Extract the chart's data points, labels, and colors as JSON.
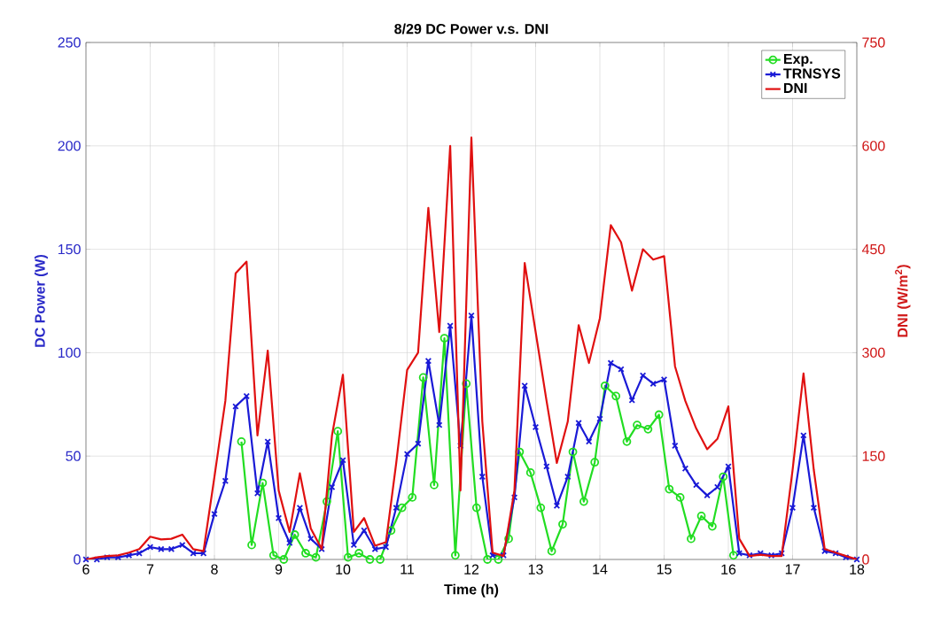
{
  "chart_data": {
    "type": "line",
    "title": "8/29 DC Power v.s. DNI",
    "xlabel": "Time (h)",
    "ylabel": "DC Power (W)",
    "y2label": "DNI (W/m$^{2}$)",
    "xlim": [
      6,
      18
    ],
    "xticks": [
      6,
      7,
      8,
      9,
      10,
      11,
      12,
      13,
      14,
      15,
      16,
      17,
      18
    ],
    "ylim": [
      0,
      250
    ],
    "yticks": [
      0,
      50,
      100,
      150,
      200,
      250
    ],
    "y2lim": [
      0,
      750
    ],
    "y2ticks": [
      0,
      150,
      300,
      450,
      600,
      750
    ],
    "grid": true,
    "legend": "top right",
    "line_style": "solid",
    "series": [
      {
        "name": "Exp.",
        "color": "#22dd22",
        "marker": "circle",
        "x": [
          8.42,
          8.58,
          8.75,
          8.92,
          9.08,
          9.25,
          9.42,
          9.58,
          9.75,
          9.92,
          10.08,
          10.25,
          10.42,
          10.58,
          10.75,
          10.92,
          11.08,
          11.25,
          11.42,
          11.58,
          11.75,
          11.92,
          12.08,
          12.25,
          12.42,
          12.58,
          12.75,
          12.92,
          13.08,
          13.25,
          13.42,
          13.58,
          13.75,
          13.92,
          14.08,
          14.25,
          14.42,
          14.58,
          14.75,
          14.92,
          15.08,
          15.25,
          15.42,
          15.58,
          15.75,
          15.92,
          16.08
        ],
        "values": [
          57,
          7,
          37,
          2,
          0,
          12,
          3,
          1,
          28,
          62,
          1,
          3,
          0,
          0,
          14,
          25,
          30,
          88,
          36,
          107,
          2,
          85,
          25,
          0,
          0,
          10,
          52,
          42,
          25,
          4,
          17,
          52,
          28,
          47,
          84,
          79,
          57,
          65,
          63,
          70,
          34,
          30,
          10,
          21,
          16,
          40,
          2
        ]
      },
      {
        "name": "TRNSYS",
        "color": "#1a1ad6",
        "marker": "cross",
        "x": [
          6.0,
          6.17,
          6.33,
          6.5,
          6.67,
          6.83,
          7.0,
          7.17,
          7.33,
          7.5,
          7.67,
          7.83,
          8.0,
          8.17,
          8.33,
          8.5,
          8.67,
          8.83,
          9.0,
          9.17,
          9.33,
          9.5,
          9.67,
          9.83,
          10.0,
          10.17,
          10.33,
          10.5,
          10.67,
          10.83,
          11.0,
          11.17,
          11.33,
          11.5,
          11.67,
          11.83,
          12.0,
          12.17,
          12.33,
          12.5,
          12.67,
          12.83,
          13.0,
          13.17,
          13.33,
          13.5,
          13.67,
          13.83,
          14.0,
          14.17,
          14.33,
          14.5,
          14.67,
          14.83,
          15.0,
          15.17,
          15.33,
          15.5,
          15.67,
          15.83,
          16.0,
          16.17,
          16.33,
          16.5,
          16.67,
          16.83,
          17.0,
          17.17,
          17.33,
          17.5,
          17.67,
          17.83,
          18.0
        ],
        "values": [
          0,
          0,
          1,
          1,
          2,
          3,
          6,
          5,
          5,
          7,
          3,
          3,
          22,
          38,
          74,
          79,
          32,
          57,
          20,
          8,
          25,
          10,
          5,
          35,
          48,
          7,
          14,
          5,
          6,
          25,
          51,
          56,
          96,
          65,
          113,
          55,
          118,
          40,
          2,
          2,
          30,
          84,
          64,
          45,
          26,
          40,
          66,
          57,
          68,
          95,
          92,
          77,
          89,
          85,
          87,
          55,
          44,
          36,
          31,
          35,
          45,
          3,
          2,
          3,
          2,
          3,
          25,
          60,
          25,
          4,
          3,
          1,
          0
        ]
      },
      {
        "name": "DNI",
        "color": "#e01010",
        "marker": "none",
        "axis": "y2",
        "x": [
          6.0,
          6.17,
          6.33,
          6.5,
          6.67,
          6.83,
          7.0,
          7.17,
          7.33,
          7.5,
          7.67,
          7.83,
          8.0,
          8.17,
          8.33,
          8.5,
          8.67,
          8.83,
          9.0,
          9.17,
          9.33,
          9.5,
          9.67,
          9.83,
          10.0,
          10.17,
          10.33,
          10.5,
          10.67,
          10.83,
          11.0,
          11.17,
          11.33,
          11.5,
          11.67,
          11.83,
          12.0,
          12.17,
          12.33,
          12.5,
          12.67,
          12.83,
          13.0,
          13.17,
          13.33,
          13.5,
          13.67,
          13.83,
          14.0,
          14.17,
          14.33,
          14.5,
          14.67,
          14.83,
          15.0,
          15.17,
          15.33,
          15.5,
          15.67,
          15.83,
          16.0,
          16.17,
          16.33,
          16.5,
          16.67,
          16.83,
          17.0,
          17.17,
          17.33,
          17.5,
          17.67,
          17.83,
          18.0
        ],
        "values": [
          0,
          3,
          5,
          6,
          10,
          15,
          33,
          29,
          30,
          36,
          15,
          12,
          120,
          230,
          415,
          432,
          180,
          303,
          100,
          40,
          125,
          45,
          15,
          180,
          268,
          40,
          60,
          20,
          25,
          140,
          275,
          300,
          510,
          330,
          600,
          100,
          612,
          200,
          10,
          5,
          100,
          430,
          330,
          230,
          140,
          200,
          340,
          285,
          350,
          485,
          460,
          390,
          450,
          435,
          440,
          280,
          230,
          190,
          160,
          175,
          222,
          30,
          5,
          7,
          5,
          5,
          130,
          270,
          130,
          15,
          10,
          5,
          0
        ]
      }
    ]
  }
}
